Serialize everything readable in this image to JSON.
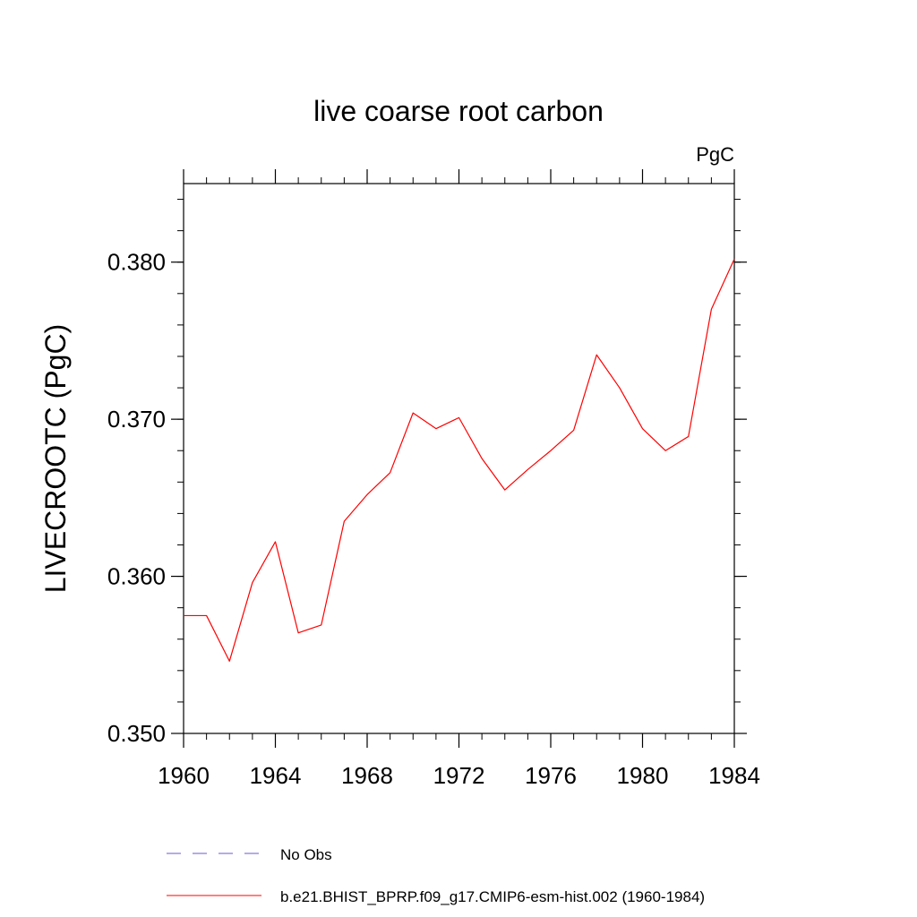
{
  "chart_data": {
    "type": "line",
    "title": "live coarse root carbon",
    "units_label": "PgC",
    "xlabel": "",
    "ylabel": "LIVECROOTC  (PgC)",
    "xlim": [
      1960,
      1984
    ],
    "ylim": [
      0.35,
      0.385
    ],
    "x_ticks": [
      1960,
      1964,
      1968,
      1972,
      1976,
      1980,
      1984
    ],
    "x_tick_labels": [
      "1960",
      "1964",
      "1968",
      "1972",
      "1976",
      "1980",
      "1984"
    ],
    "y_ticks": [
      0.35,
      0.36,
      0.37,
      0.38
    ],
    "y_tick_labels": [
      "0.350",
      "0.360",
      "0.370",
      "0.380"
    ],
    "y_minor_step": 0.002,
    "x_minor_step": 1,
    "grid": false,
    "series": [
      {
        "name": "b.e21.BHIST_BPRP.f09_g17.CMIP6-esm-hist.002 (1960-1984)",
        "color": "#ff0000",
        "style": "solid",
        "x": [
          1960,
          1961,
          1962,
          1963,
          1964,
          1965,
          1966,
          1967,
          1968,
          1969,
          1970,
          1971,
          1972,
          1973,
          1974,
          1975,
          1976,
          1977,
          1978,
          1979,
          1980,
          1981,
          1982,
          1983,
          1984
        ],
        "values": [
          0.3575,
          0.3575,
          0.3546,
          0.3596,
          0.3622,
          0.3564,
          0.3569,
          0.3635,
          0.3652,
          0.3666,
          0.3704,
          0.3694,
          0.3701,
          0.3675,
          0.3655,
          0.3668,
          0.368,
          0.3693,
          0.3741,
          0.372,
          0.3694,
          0.368,
          0.3689,
          0.377,
          0.3802
        ]
      }
    ],
    "legend": [
      {
        "label": "No Obs",
        "color": "#6a5acd",
        "style": "dashed"
      },
      {
        "label": "b.e21.BHIST_BPRP.f09_g17.CMIP6-esm-hist.002 (1960-1984)",
        "color": "#ff0000",
        "style": "solid"
      }
    ],
    "legend_position": "bottom"
  }
}
